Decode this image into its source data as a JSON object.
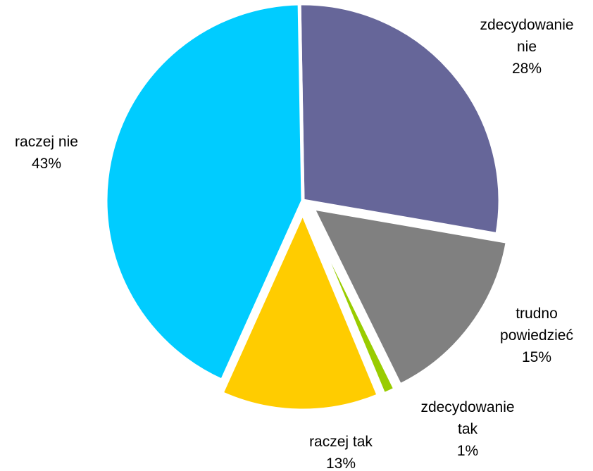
{
  "chart_data": {
    "type": "pie",
    "start_angle_deg": 91,
    "direction": "clockwise",
    "slices": [
      {
        "label_lines": [
          "zdecydowanie",
          "nie"
        ],
        "percent_label": "28%",
        "value": 28,
        "color": "#666699",
        "explode": 0
      },
      {
        "label_lines": [
          "trudno",
          "powiedzieć"
        ],
        "percent_label": "15%",
        "value": 15,
        "color": "#808080",
        "explode": 18
      },
      {
        "label_lines": [
          "zdecydowanie",
          "tak"
        ],
        "percent_label": "1%",
        "value": 1,
        "color": "#99CC00",
        "explode": 18
      },
      {
        "label_lines": [
          "raczej tak"
        ],
        "percent_label": "13%",
        "value": 13,
        "color": "#FFCC00",
        "explode": 18
      },
      {
        "label_lines": [
          "raczej nie"
        ],
        "percent_label": "43%",
        "value": 43,
        "color": "#00CCFF",
        "explode": 0
      }
    ]
  }
}
